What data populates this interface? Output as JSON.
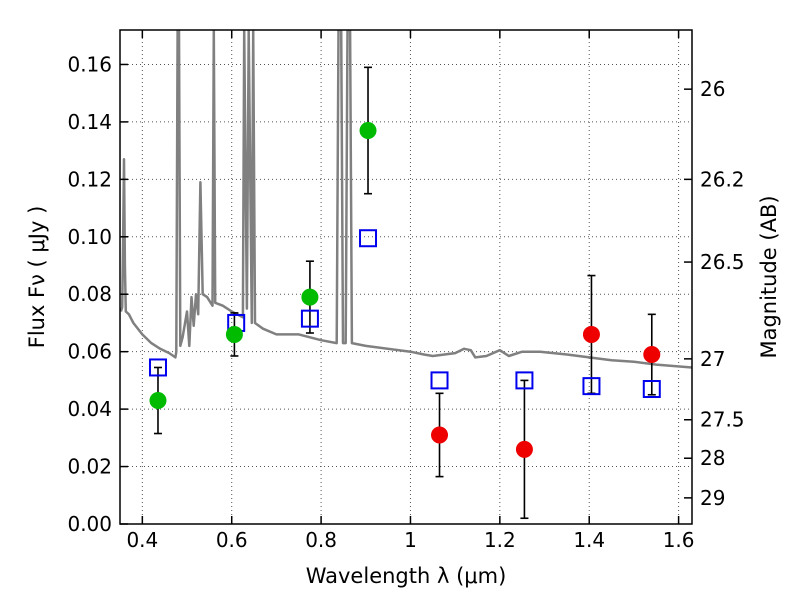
{
  "chart_data": {
    "type": "scatter",
    "xlabel": "Wavelength  λ (μm)",
    "ylabel": "Flux  Fν  ( μJy )",
    "ylabel_right": "Magnitude (AB)",
    "xlim": [
      0.35,
      1.63
    ],
    "ylim": [
      0.0,
      0.172
    ],
    "grid": true,
    "x_ticks": [
      {
        "value": 0.4,
        "label": "0.4"
      },
      {
        "value": 0.6,
        "label": "0.6"
      },
      {
        "value": 0.8,
        "label": "0.8"
      },
      {
        "value": 1.0,
        "label": "1"
      },
      {
        "value": 1.2,
        "label": "1.2"
      },
      {
        "value": 1.4,
        "label": "1.4"
      },
      {
        "value": 1.6,
        "label": "1.6"
      }
    ],
    "y_ticks": [
      {
        "value": 0.0,
        "label": "0.00"
      },
      {
        "value": 0.02,
        "label": "0.02"
      },
      {
        "value": 0.04,
        "label": "0.04"
      },
      {
        "value": 0.06,
        "label": "0.06"
      },
      {
        "value": 0.08,
        "label": "0.08"
      },
      {
        "value": 0.1,
        "label": "0.10"
      },
      {
        "value": 0.12,
        "label": "0.12"
      },
      {
        "value": 0.14,
        "label": "0.14"
      },
      {
        "value": 0.16,
        "label": "0.16"
      }
    ],
    "right_ticks": [
      {
        "flux": 0.1514,
        "label": "26"
      },
      {
        "flux": 0.12,
        "label": "26.2"
      },
      {
        "flux": 0.0912,
        "label": "26.5"
      },
      {
        "flux": 0.0575,
        "label": "27"
      },
      {
        "flux": 0.0363,
        "label": "27.5"
      },
      {
        "flux": 0.0229,
        "label": "28"
      },
      {
        "flux": 0.0091,
        "label": "29"
      }
    ],
    "series": [
      {
        "marker": "circle",
        "color": "#00bb00",
        "points": [
          {
            "x": 0.435,
            "y": 0.043,
            "yerr": 0.0115
          },
          {
            "x": 0.606,
            "y": 0.066,
            "yerr": 0.0075
          },
          {
            "x": 0.775,
            "y": 0.079,
            "yerr": 0.0125
          },
          {
            "x": 0.905,
            "y": 0.137,
            "yerr": 0.022
          }
        ]
      },
      {
        "marker": "circle",
        "color": "#ee0000",
        "points": [
          {
            "x": 1.065,
            "y": 0.031,
            "yerr": 0.0145
          },
          {
            "x": 1.255,
            "y": 0.026,
            "yerr": 0.024
          },
          {
            "x": 1.405,
            "y": 0.066,
            "yerr": 0.0205
          },
          {
            "x": 1.54,
            "y": 0.059,
            "yerr": 0.014
          }
        ]
      },
      {
        "marker": "square",
        "color": "#0000ee",
        "points": [
          {
            "x": 0.435,
            "y": 0.0545
          },
          {
            "x": 0.61,
            "y": 0.07
          },
          {
            "x": 0.775,
            "y": 0.0715
          },
          {
            "x": 0.905,
            "y": 0.0995
          },
          {
            "x": 1.065,
            "y": 0.05
          },
          {
            "x": 1.255,
            "y": 0.05
          },
          {
            "x": 1.405,
            "y": 0.048
          },
          {
            "x": 1.54,
            "y": 0.047
          }
        ]
      },
      {
        "marker": "line",
        "color": "#808080",
        "points": [
          {
            "x": 0.352,
            "y": 0.074
          },
          {
            "x": 0.355,
            "y": 0.0755
          },
          {
            "x": 0.357,
            "y": 0.098
          },
          {
            "x": 0.359,
            "y": 0.127
          },
          {
            "x": 0.361,
            "y": 0.09
          },
          {
            "x": 0.363,
            "y": 0.074
          },
          {
            "x": 0.37,
            "y": 0.073
          },
          {
            "x": 0.38,
            "y": 0.07
          },
          {
            "x": 0.4,
            "y": 0.066
          },
          {
            "x": 0.42,
            "y": 0.063
          },
          {
            "x": 0.44,
            "y": 0.061
          },
          {
            "x": 0.46,
            "y": 0.0595
          },
          {
            "x": 0.474,
            "y": 0.058
          },
          {
            "x": 0.476,
            "y": 0.06
          },
          {
            "x": 0.479,
            "y": 0.172
          },
          {
            "x": 0.482,
            "y": 0.172
          },
          {
            "x": 0.485,
            "y": 0.062
          },
          {
            "x": 0.49,
            "y": 0.065
          },
          {
            "x": 0.5,
            "y": 0.074
          },
          {
            "x": 0.505,
            "y": 0.062
          },
          {
            "x": 0.51,
            "y": 0.079
          },
          {
            "x": 0.515,
            "y": 0.069
          },
          {
            "x": 0.52,
            "y": 0.08
          },
          {
            "x": 0.525,
            "y": 0.073
          },
          {
            "x": 0.53,
            "y": 0.119
          },
          {
            "x": 0.535,
            "y": 0.08
          },
          {
            "x": 0.545,
            "y": 0.079
          },
          {
            "x": 0.557,
            "y": 0.076
          },
          {
            "x": 0.56,
            "y": 0.172
          },
          {
            "x": 0.563,
            "y": 0.077
          },
          {
            "x": 0.58,
            "y": 0.076
          },
          {
            "x": 0.6,
            "y": 0.074
          },
          {
            "x": 0.625,
            "y": 0.072
          },
          {
            "x": 0.628,
            "y": 0.172
          },
          {
            "x": 0.634,
            "y": 0.075
          },
          {
            "x": 0.638,
            "y": 0.172
          },
          {
            "x": 0.645,
            "y": 0.07
          },
          {
            "x": 0.648,
            "y": 0.172
          },
          {
            "x": 0.652,
            "y": 0.07
          },
          {
            "x": 0.67,
            "y": 0.068
          },
          {
            "x": 0.7,
            "y": 0.066
          },
          {
            "x": 0.75,
            "y": 0.066
          },
          {
            "x": 0.8,
            "y": 0.064
          },
          {
            "x": 0.835,
            "y": 0.063
          },
          {
            "x": 0.839,
            "y": 0.172
          },
          {
            "x": 0.845,
            "y": 0.172
          },
          {
            "x": 0.849,
            "y": 0.063
          },
          {
            "x": 0.855,
            "y": 0.063
          },
          {
            "x": 0.859,
            "y": 0.172
          },
          {
            "x": 0.865,
            "y": 0.172
          },
          {
            "x": 0.869,
            "y": 0.063
          },
          {
            "x": 0.9,
            "y": 0.062
          },
          {
            "x": 1.0,
            "y": 0.06
          },
          {
            "x": 1.03,
            "y": 0.059
          },
          {
            "x": 1.05,
            "y": 0.0585
          },
          {
            "x": 1.1,
            "y": 0.0595
          },
          {
            "x": 1.12,
            "y": 0.061
          },
          {
            "x": 1.135,
            "y": 0.0605
          },
          {
            "x": 1.145,
            "y": 0.058
          },
          {
            "x": 1.17,
            "y": 0.0585
          },
          {
            "x": 1.2,
            "y": 0.0605
          },
          {
            "x": 1.22,
            "y": 0.0585
          },
          {
            "x": 1.25,
            "y": 0.06
          },
          {
            "x": 1.29,
            "y": 0.06
          },
          {
            "x": 1.35,
            "y": 0.059
          },
          {
            "x": 1.4,
            "y": 0.058
          },
          {
            "x": 1.45,
            "y": 0.057
          },
          {
            "x": 1.5,
            "y": 0.0565
          },
          {
            "x": 1.55,
            "y": 0.0555
          },
          {
            "x": 1.63,
            "y": 0.0545
          }
        ]
      }
    ]
  }
}
